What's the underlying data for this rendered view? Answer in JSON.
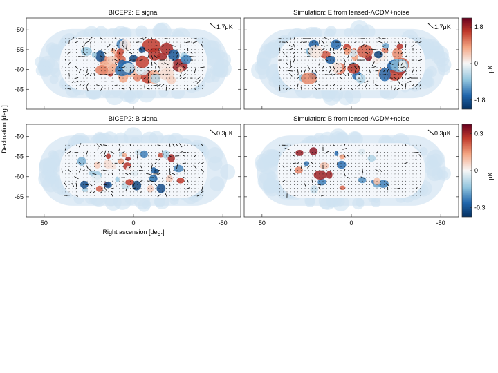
{
  "chart_data": [
    {
      "type": "heatmap",
      "title": "BICEP2: E signal",
      "xlabel": "",
      "ylabel": "",
      "x_ticks": [],
      "y_ticks": [
        "-50",
        "-55",
        "-60",
        "-65"
      ],
      "ylim": [
        -70,
        -47
      ],
      "annotation": "1.7μK",
      "field": "E",
      "seed": 11,
      "density": 1.0,
      "colorbar": null
    },
    {
      "type": "heatmap",
      "title": "Simulation: E from lensed-ΛCDM+noise",
      "xlabel": "",
      "ylabel": "",
      "x_ticks": [],
      "y_ticks": [],
      "ylim": [
        -70,
        -47
      ],
      "annotation": "1.7μK",
      "field": "E",
      "seed": 29,
      "density": 1.0,
      "colorbar": {
        "ticks": [
          "1.8",
          "0",
          "-1.8"
        ],
        "range": [
          -1.8,
          1.8
        ],
        "label": "μK"
      }
    },
    {
      "type": "heatmap",
      "title": "BICEP2: B signal",
      "xlabel": "Right ascension [deg.]",
      "ylabel": "Declination [deg.]",
      "x_ticks": [
        "50",
        "0",
        "-50"
      ],
      "y_ticks": [
        "-50",
        "-55",
        "-60",
        "-65"
      ],
      "ylim": [
        -70,
        -47
      ],
      "xlim": [
        60,
        -60
      ],
      "annotation": "0.3μK",
      "field": "B",
      "seed": 47,
      "density": 0.9,
      "colorbar": null
    },
    {
      "type": "heatmap",
      "title": "Simulation: B from lensed-ΛCDM+noise",
      "xlabel": "",
      "ylabel": "",
      "x_ticks": [
        "50",
        "0",
        "-50"
      ],
      "y_ticks": [],
      "ylim": [
        -70,
        -47
      ],
      "xlim": [
        60,
        -60
      ],
      "annotation": "0.3μK",
      "field": "B",
      "seed": 83,
      "density": 0.45,
      "colorbar": {
        "ticks": [
          "0.3",
          "0",
          "-0.3"
        ],
        "range": [
          -0.3,
          0.3
        ],
        "label": "μK"
      }
    }
  ]
}
